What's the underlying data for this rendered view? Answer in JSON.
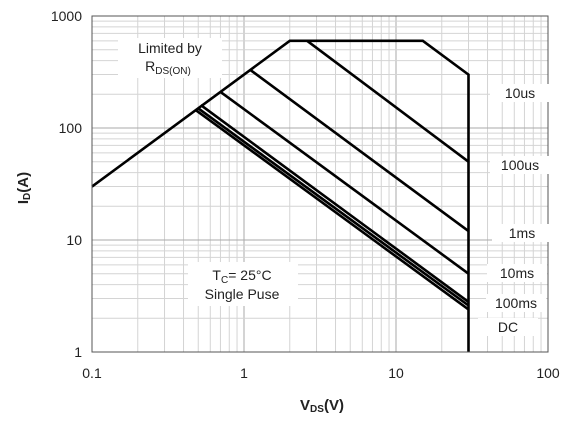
{
  "chart_data": {
    "type": "line",
    "xscale": "log",
    "yscale": "log",
    "xlim": [
      0.1,
      100
    ],
    "ylim": [
      1,
      1000
    ],
    "grid": true,
    "xlabel": {
      "main": "V",
      "sub": "DS",
      "tail": "(V)"
    },
    "ylabel": {
      "main": "I",
      "sub": "D",
      "tail": "(A)"
    },
    "x_ticks": [
      "0.1",
      "1",
      "10",
      "100"
    ],
    "y_ticks": [
      "1",
      "10",
      "100",
      "1000"
    ],
    "boundary": [
      [
        0.1,
        30
      ],
      [
        2,
        600
      ],
      [
        15,
        600
      ],
      [
        30,
        300
      ],
      [
        30,
        1
      ]
    ],
    "series": [
      {
        "name": "10us",
        "points": [
          [
            2.6,
            600
          ],
          [
            30,
            50
          ]
        ]
      },
      {
        "name": "100us",
        "points": [
          [
            1.1,
            330
          ],
          [
            30,
            12
          ]
        ]
      },
      {
        "name": "1ms",
        "points": [
          [
            0.7,
            210
          ],
          [
            30,
            5
          ]
        ]
      },
      {
        "name": "10ms",
        "points": [
          [
            0.52,
            160
          ],
          [
            30,
            2.8
          ]
        ]
      },
      {
        "name": "100ms",
        "points": [
          [
            0.5,
            150
          ],
          [
            30,
            2.6
          ]
        ]
      },
      {
        "name": "DC",
        "points": [
          [
            0.48,
            145
          ],
          [
            30,
            2.4
          ]
        ]
      }
    ],
    "annotations": {
      "limited": {
        "line1": "Limited by",
        "main": "R",
        "sub": "DS(ON)"
      },
      "conditions": {
        "main": "T",
        "sub": "C",
        "tail": "= 25°C",
        "line2": "Single Puse"
      }
    }
  }
}
